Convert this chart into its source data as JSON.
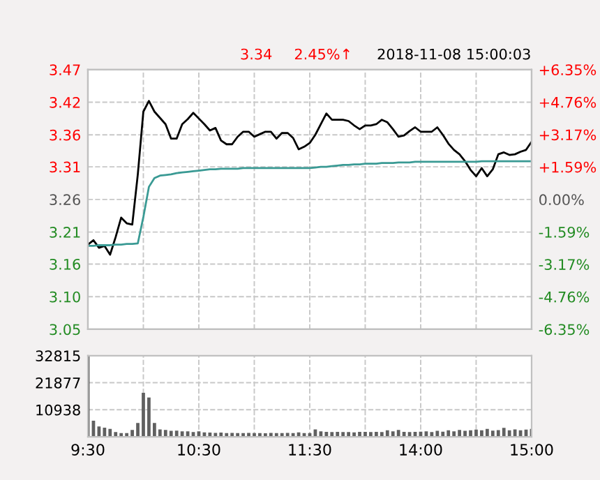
{
  "chart_data": [
    {
      "type": "line",
      "annotations": [
        "3.34",
        "2.45%↑",
        "2018-11-08 15:00:03"
      ],
      "categories": [
        null,
        null,
        null,
        null,
        null,
        null,
        null,
        null,
        null,
        null,
        null,
        null,
        null,
        null,
        null,
        null,
        null,
        null,
        null,
        null,
        null,
        null,
        null,
        null,
        null,
        null,
        null,
        null,
        null,
        null,
        null,
        null,
        null,
        null,
        null,
        null,
        null,
        null,
        null,
        null,
        null,
        null,
        null,
        null,
        null,
        null,
        null,
        null,
        null,
        null,
        null,
        null,
        null,
        null,
        null,
        null,
        null,
        null,
        null,
        null,
        null,
        null,
        null,
        null,
        null,
        null,
        null,
        null,
        null,
        null,
        null,
        null,
        null,
        null,
        null,
        null,
        null,
        null,
        null,
        null,
        null
      ],
      "ylim": [
        3.053,
        3.467
      ],
      "yticks": [
        {
          "value": 3.053,
          "label": "3.05"
        },
        {
          "value": 3.105,
          "label": "3.10"
        },
        {
          "value": 3.157,
          "label": "3.16"
        },
        {
          "value": 3.208,
          "label": "3.21"
        },
        {
          "value": 3.26,
          "label": "3.26"
        },
        {
          "value": 3.312,
          "label": "3.31"
        },
        {
          "value": 3.363,
          "label": "3.36"
        },
        {
          "value": 3.415,
          "label": "3.42"
        },
        {
          "value": 3.467,
          "label": "3.47"
        }
      ],
      "y2lim": [
        -6.35,
        6.35
      ],
      "y2ticks": [
        {
          "value": -6.35,
          "label": "-6.35%"
        },
        {
          "value": -4.76,
          "label": "-4.76%"
        },
        {
          "value": -3.17,
          "label": "-3.17%"
        },
        {
          "value": -1.59,
          "label": "-1.59%"
        },
        {
          "value": 0,
          "label": "0.00%"
        },
        {
          "value": 1.59,
          "label": "+1.59%"
        },
        {
          "value": 3.17,
          "label": "+3.17%"
        },
        {
          "value": 4.76,
          "label": "+4.76%"
        },
        {
          "value": 6.35,
          "label": "+6.35%"
        }
      ],
      "tick_labels": "y",
      "grid": true,
      "legend": false,
      "line_style": "solid",
      "marker": "none",
      "series": [
        {
          "color": "#000000",
          "values": [
            3.188,
            3.195,
            3.183,
            3.186,
            3.172,
            3.2,
            3.231,
            3.222,
            3.22,
            3.3,
            3.4,
            3.417,
            3.4,
            3.39,
            3.38,
            3.357,
            3.357,
            3.38,
            3.388,
            3.398,
            3.389,
            3.38,
            3.37,
            3.374,
            3.354,
            3.348,
            3.348,
            3.36,
            3.368,
            3.368,
            3.36,
            3.364,
            3.368,
            3.368,
            3.357,
            3.366,
            3.366,
            3.358,
            3.34,
            3.344,
            3.35,
            3.363,
            3.38,
            3.397,
            3.387,
            3.387,
            3.387,
            3.385,
            3.378,
            3.372,
            3.378,
            3.378,
            3.38,
            3.387,
            3.383,
            3.372,
            3.36,
            3.362,
            3.369,
            3.375,
            3.368,
            3.368,
            3.368,
            3.375,
            3.363,
            3.349,
            3.339,
            3.332,
            3.321,
            3.307,
            3.297,
            3.31,
            3.297,
            3.308,
            3.332,
            3.335,
            3.331,
            3.332,
            3.336,
            3.339,
            3.352
          ]
        },
        {
          "color": "#3a9a94",
          "values": [
            3.186,
            3.186,
            3.187,
            3.187,
            3.187,
            3.188,
            3.188,
            3.189,
            3.189,
            3.19,
            3.232,
            3.28,
            3.294,
            3.298,
            3.299,
            3.3,
            3.302,
            3.303,
            3.304,
            3.305,
            3.306,
            3.307,
            3.308,
            3.308,
            3.309,
            3.309,
            3.309,
            3.309,
            3.31,
            3.31,
            3.31,
            3.31,
            3.31,
            3.31,
            3.31,
            3.31,
            3.31,
            3.31,
            3.31,
            3.31,
            3.31,
            3.311,
            3.312,
            3.312,
            3.313,
            3.314,
            3.315,
            3.315,
            3.316,
            3.316,
            3.317,
            3.317,
            3.317,
            3.318,
            3.318,
            3.318,
            3.319,
            3.319,
            3.319,
            3.32,
            3.32,
            3.32,
            3.32,
            3.32,
            3.32,
            3.32,
            3.32,
            3.32,
            3.32,
            3.32,
            3.32,
            3.321,
            3.321,
            3.321,
            3.321,
            3.321,
            3.321,
            3.321,
            3.321,
            3.321,
            3.321
          ]
        }
      ]
    },
    {
      "type": "bar",
      "categories": [
        "9:30",
        null,
        null,
        null,
        null,
        null,
        null,
        null,
        null,
        null,
        null,
        null,
        null,
        null,
        null,
        null,
        null,
        null,
        null,
        null,
        "10:30",
        null,
        null,
        null,
        null,
        null,
        null,
        null,
        null,
        null,
        null,
        null,
        null,
        null,
        null,
        null,
        null,
        null,
        null,
        null,
        "11:30",
        null,
        null,
        null,
        null,
        null,
        null,
        null,
        null,
        null,
        null,
        null,
        null,
        null,
        null,
        null,
        null,
        null,
        null,
        null,
        "14:00",
        null,
        null,
        null,
        null,
        null,
        null,
        null,
        null,
        null,
        null,
        null,
        null,
        null,
        null,
        null,
        null,
        null,
        null,
        null,
        "15:00"
      ],
      "ylim": [
        0,
        32815
      ],
      "yticks": [
        10938,
        21877,
        32815
      ],
      "grid": true,
      "legend": false,
      "series": [
        {
          "color": "#606060",
          "values": [
            32800,
            6500,
            4200,
            3700,
            3200,
            1900,
            1500,
            1500,
            2800,
            5600,
            17800,
            15900,
            5600,
            3000,
            2800,
            2400,
            2500,
            2200,
            2200,
            1900,
            2200,
            1800,
            1700,
            1600,
            1700,
            1500,
            1600,
            1500,
            1500,
            1600,
            1500,
            1500,
            1400,
            1600,
            1500,
            1500,
            1600,
            1500,
            1800,
            1500,
            1500,
            3000,
            2200,
            2000,
            1900,
            2000,
            1900,
            1900,
            1800,
            2000,
            2000,
            1900,
            2000,
            1900,
            2600,
            2200,
            2800,
            2000,
            1900,
            2000,
            2100,
            2200,
            1900,
            2400,
            2100,
            2600,
            2200,
            2800,
            2400,
            2600,
            2900,
            2600,
            3200,
            2500,
            2700,
            3600,
            2600,
            3000,
            2600,
            2900,
            3200
          ]
        }
      ]
    }
  ]
}
